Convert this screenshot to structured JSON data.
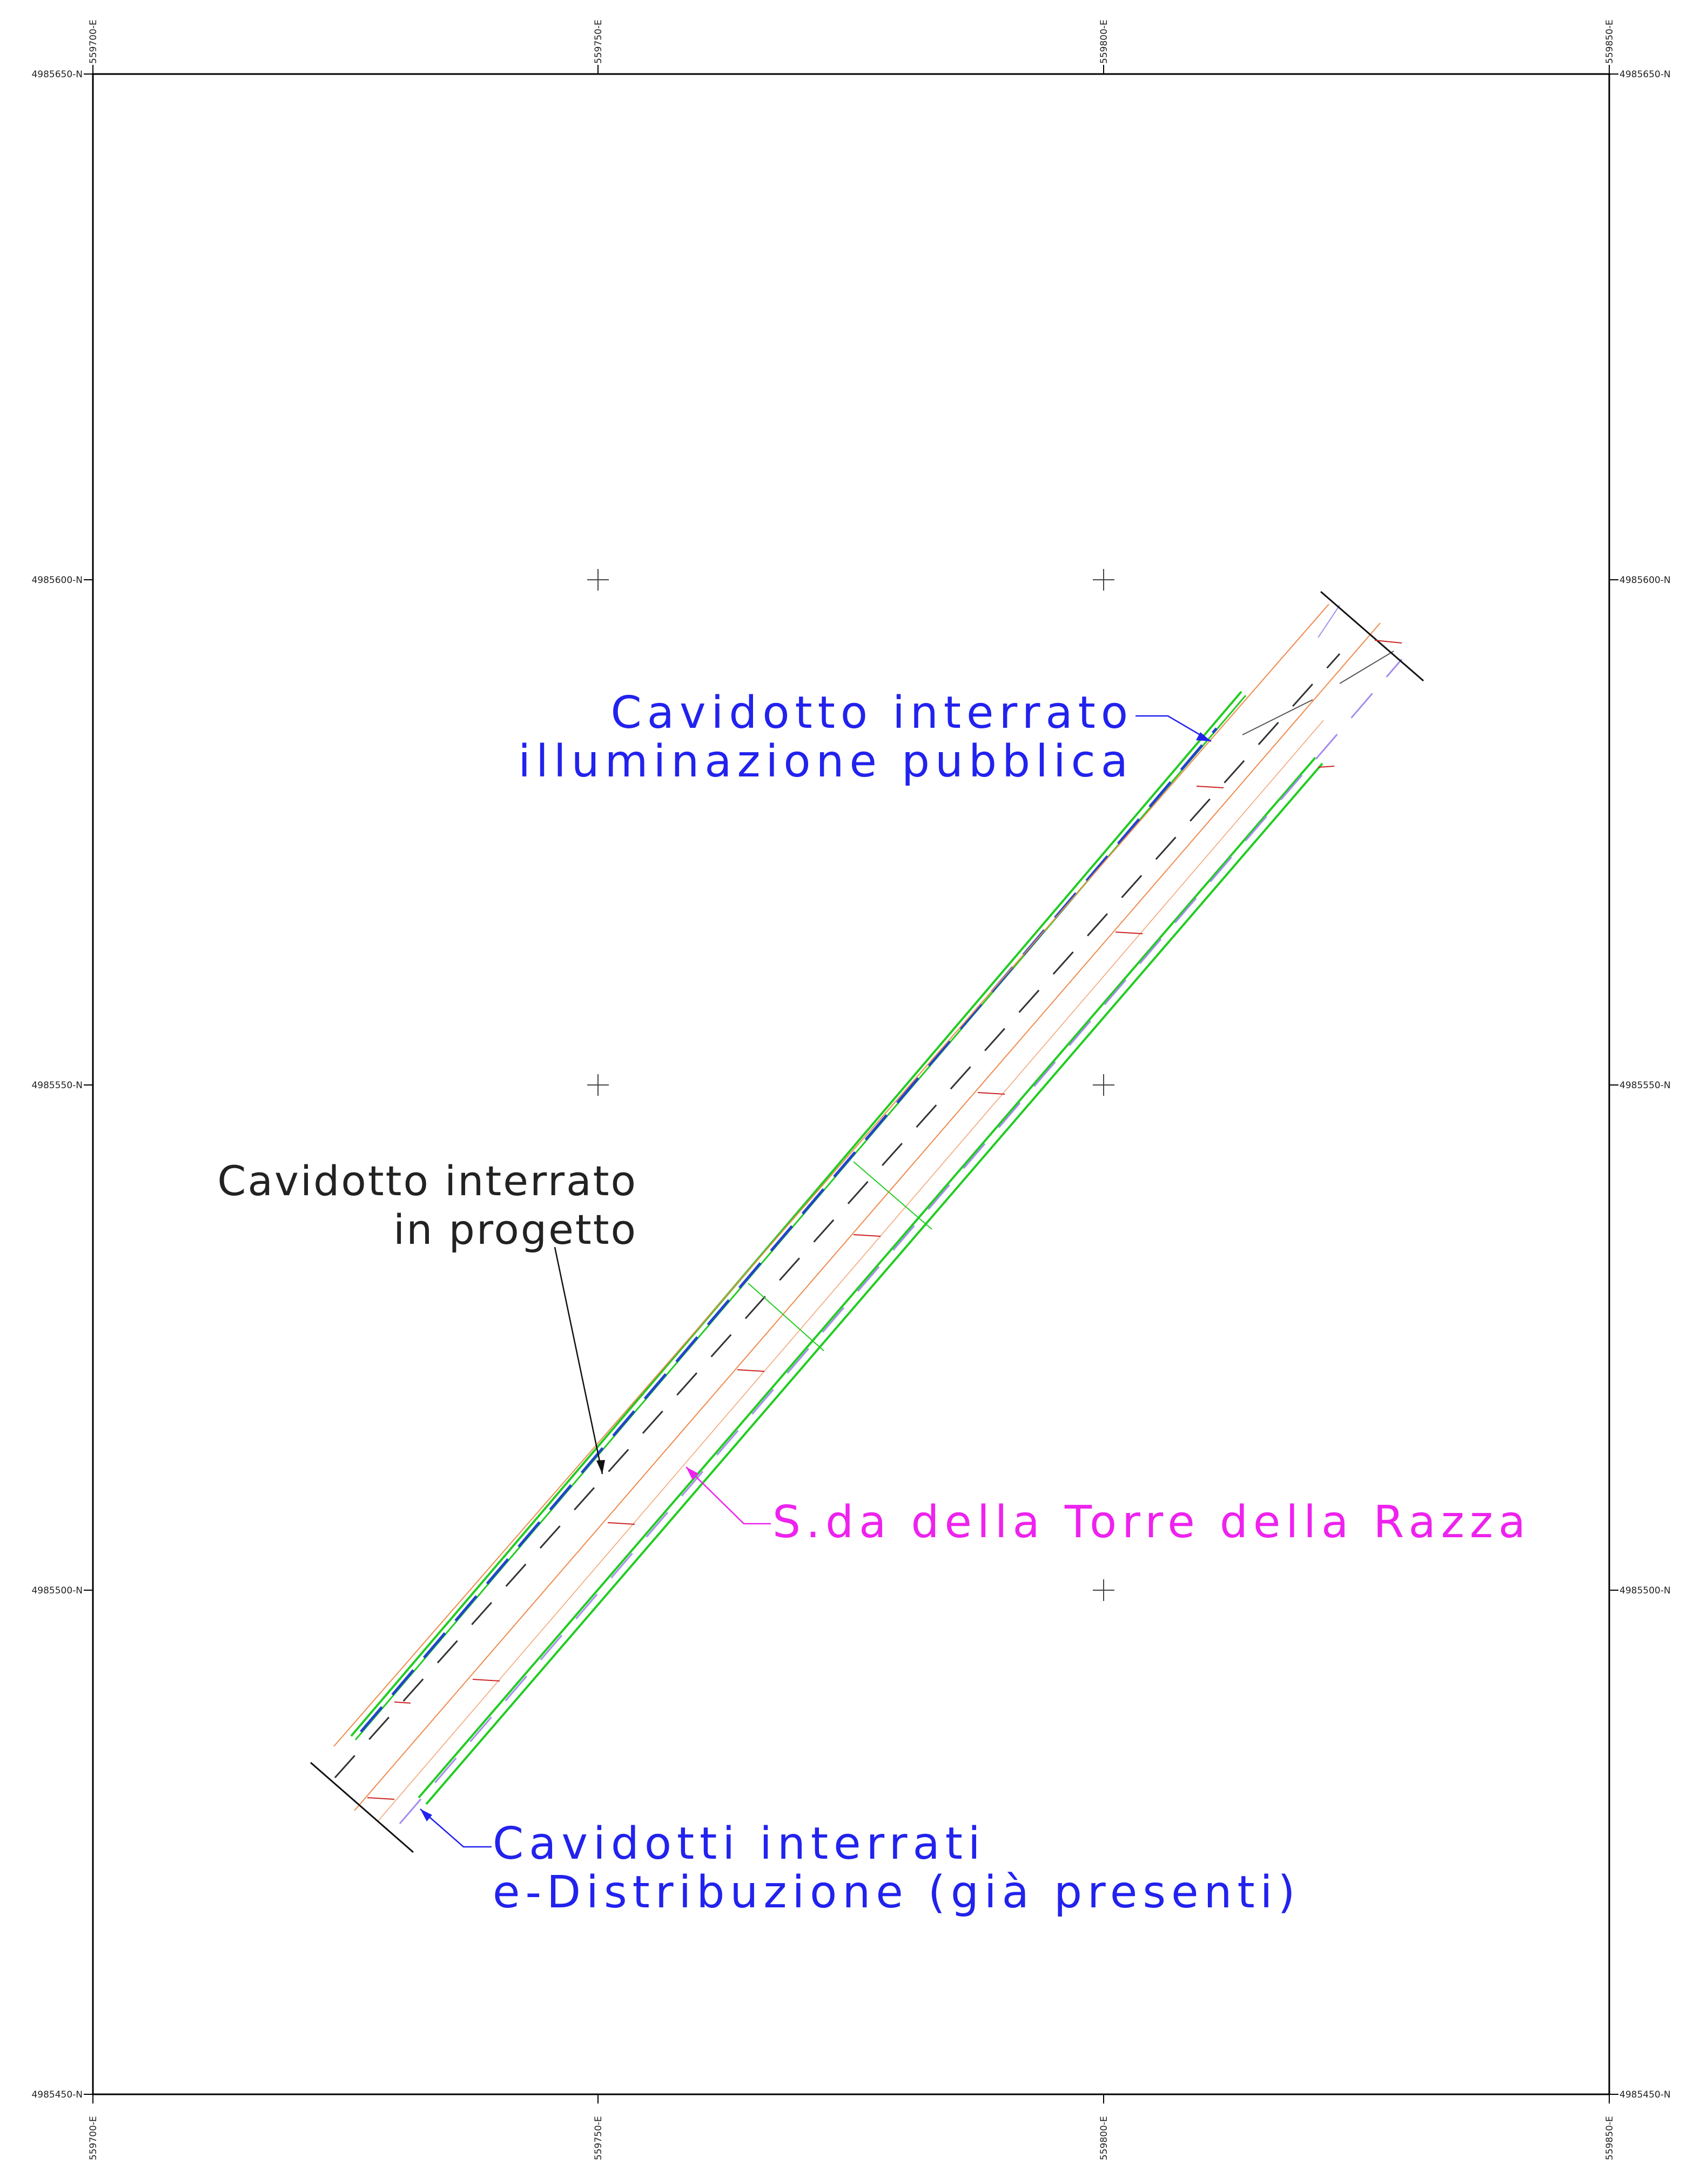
{
  "grid": {
    "easting_labels": [
      "559700-E",
      "559750-E",
      "559800-E",
      "559850-E"
    ],
    "northing_labels": [
      "4985650-N",
      "4985600-N",
      "4985550-N",
      "4985500-N",
      "4985450-N"
    ]
  },
  "labels": {
    "illuminazione": {
      "line1": "Cavidotto interrato",
      "line2": "illuminazione pubblica",
      "color": "#2222ee"
    },
    "progetto": {
      "line1": "Cavidotto interrato",
      "line2": "in progetto",
      "color": "#222222"
    },
    "strada": {
      "text": "S.da della Torre della Razza",
      "color": "#ee22ee"
    },
    "distribuzione": {
      "line1": "Cavidotti interrati",
      "line2": "e-Distribuzione (già presenti)",
      "color": "#2222ee"
    }
  },
  "colors": {
    "frame": "#000000",
    "verge_green": "#22cc22",
    "lighting_blue": "#2244cc",
    "project_dashed": "#333333",
    "orange_edge": "#f08a4b",
    "distribution_lilac": "#a58cf0"
  }
}
